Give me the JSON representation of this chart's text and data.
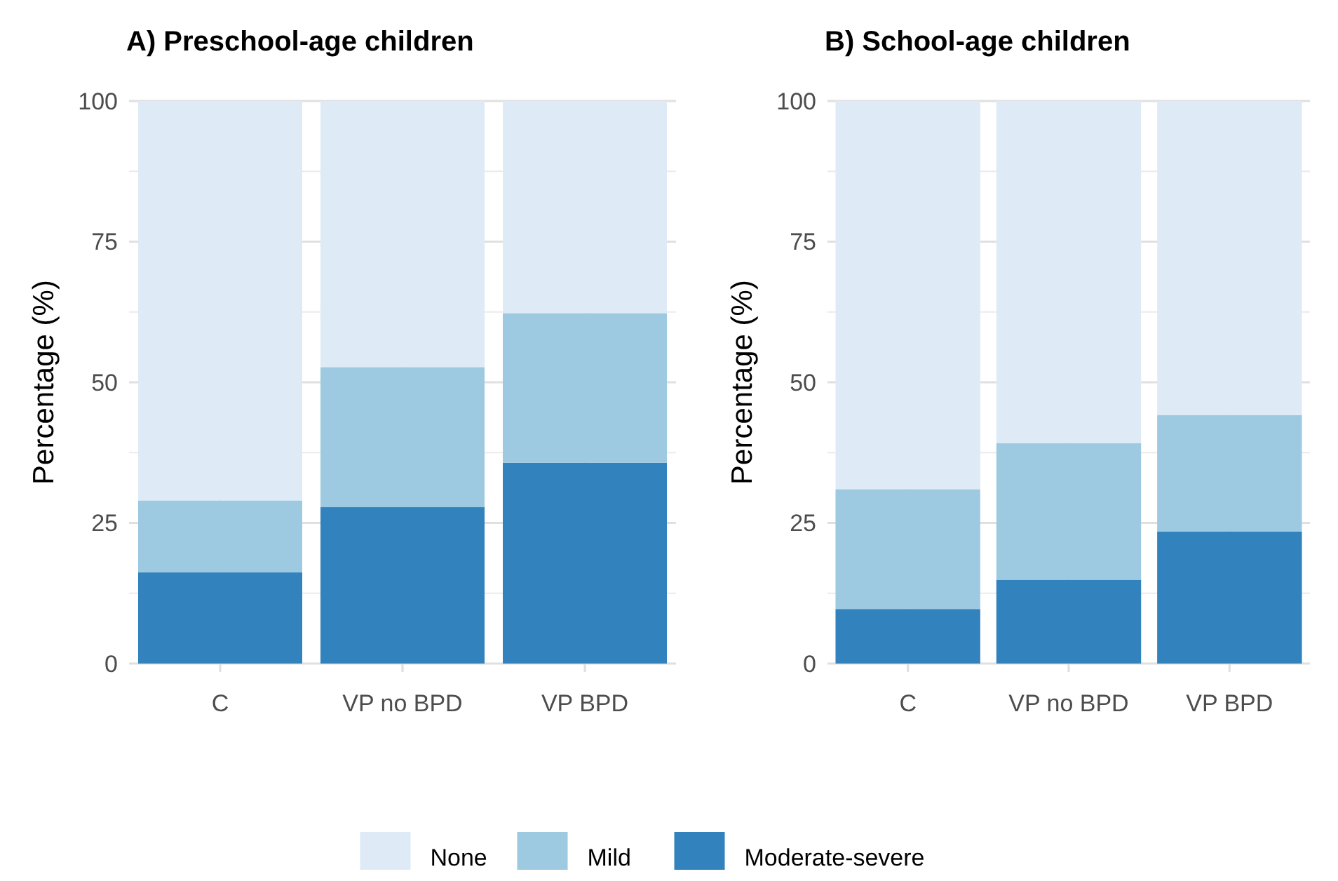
{
  "chart_data": [
    {
      "type": "bar",
      "title": "A) Preschool-age children",
      "ylabel": "Percentage (%)",
      "stacked": true,
      "categories": [
        "C",
        "VP no BPD",
        "VP BPD"
      ],
      "ylim": [
        0,
        100
      ],
      "yticks": [
        0,
        25,
        50,
        75,
        100
      ],
      "grid": true,
      "series": [
        {
          "color": "#3182bd",
          "values": [
            16.2,
            27.8,
            35.7
          ]
        },
        {
          "color": "#9ecae1",
          "values": [
            12.8,
            24.9,
            26.6
          ]
        },
        {
          "color": "#deebf7",
          "values": [
            71.0,
            47.3,
            37.7
          ]
        }
      ]
    },
    {
      "type": "bar",
      "title": "B) School-age children",
      "ylabel": "Percentage (%)",
      "stacked": true,
      "categories": [
        "C",
        "VP no BPD",
        "VP BPD"
      ],
      "ylim": [
        0,
        100
      ],
      "yticks": [
        0,
        25,
        50,
        75,
        100
      ],
      "grid": true,
      "legend": "bottom",
      "series": [
        {
          "name": "Moderate-severe",
          "color": "#3182bd",
          "values": [
            9.7,
            14.9,
            23.5
          ]
        },
        {
          "name": "Mild",
          "color": "#9ecae1",
          "values": [
            21.3,
            24.3,
            20.7
          ]
        },
        {
          "name": "None",
          "color": "#deebf7",
          "values": [
            69.0,
            60.8,
            55.8
          ]
        }
      ]
    }
  ]
}
